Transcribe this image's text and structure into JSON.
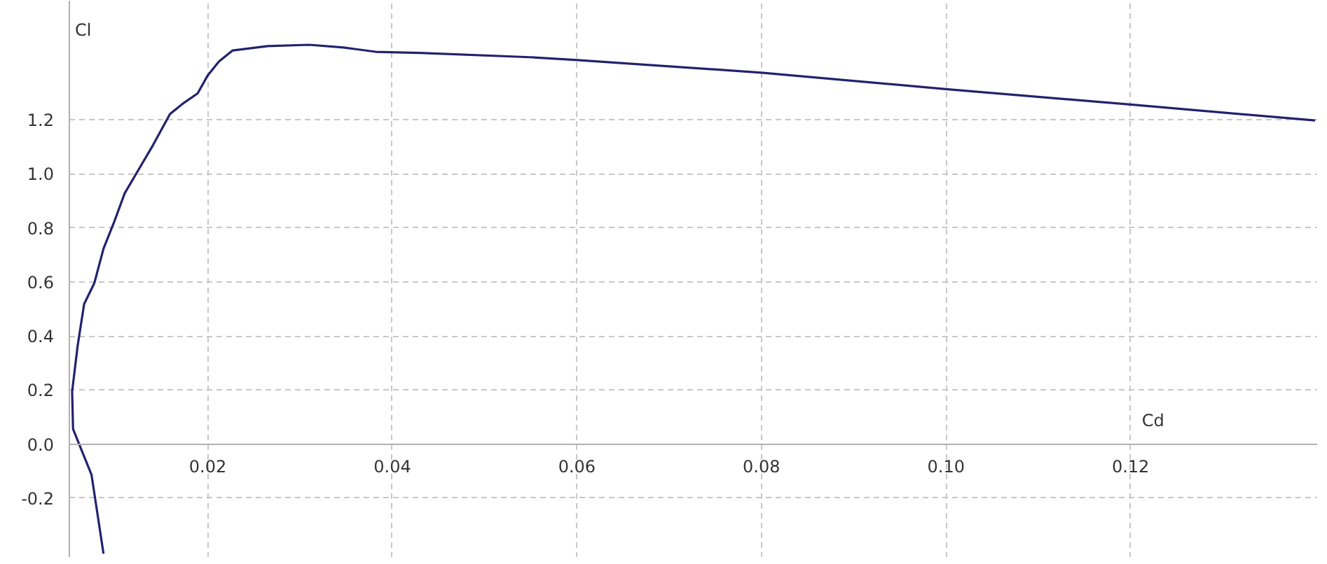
{
  "chart_data": {
    "type": "line",
    "xlabel": "Cd",
    "ylabel": "Cl",
    "xlim": [
      0.005,
      0.1403
    ],
    "ylim": [
      -0.42,
      1.64
    ],
    "xticks": [
      0.02,
      0.04,
      0.06,
      0.08,
      {
        "value": 0.1,
        "label": "0.10"
      },
      0.12
    ],
    "yticks": [
      {
        "value": -0.2,
        "label": "-0.2"
      },
      {
        "value": 0,
        "label": "0.0"
      },
      {
        "value": 0.2,
        "label": "0.2"
      },
      {
        "value": 0.4,
        "label": "0.4"
      },
      {
        "value": 0.6,
        "label": "0.6"
      },
      {
        "value": 0.8,
        "label": "0.8"
      },
      {
        "value": 1.0,
        "label": "1.0"
      },
      {
        "value": 1.2,
        "label": "1.2"
      }
    ],
    "grid": true,
    "marker": "none",
    "line_style": "solid",
    "series": [
      {
        "color": "#22226e",
        "x": [
          0.0087,
          0.0074,
          0.0054,
          0.0053,
          0.0059,
          0.0066,
          0.0077,
          0.0087,
          0.0099,
          0.011,
          0.0125,
          0.0141,
          0.0159,
          0.0174,
          0.0189,
          0.02,
          0.0212,
          0.0227,
          0.0265,
          0.031,
          0.0347,
          0.0382,
          0.043,
          0.0549,
          0.0598,
          0.08,
          0.1,
          0.12,
          0.14
        ],
        "values": [
          -0.405,
          -0.113,
          0.056,
          0.195,
          0.364,
          0.518,
          0.595,
          0.723,
          0.826,
          0.928,
          1.015,
          1.108,
          1.221,
          1.262,
          1.297,
          1.364,
          1.415,
          1.456,
          1.472,
          1.477,
          1.467,
          1.451,
          1.447,
          1.431,
          1.421,
          1.374,
          1.313,
          1.256,
          1.197
        ]
      }
    ]
  }
}
